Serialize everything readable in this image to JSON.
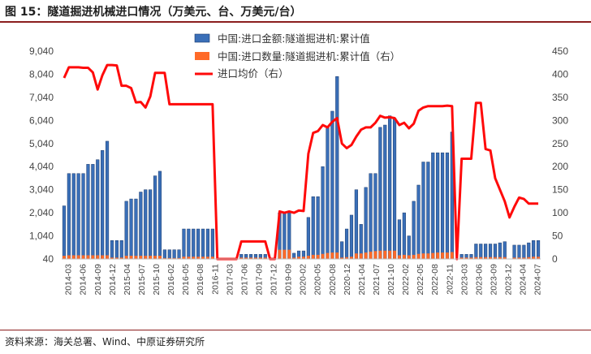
{
  "figure": {
    "title": "图 15：隧道掘进机械进口情况（万美元、台、万美元/台）",
    "source": "资料来源：海关总署、Wind、中原证券研究所"
  },
  "colors": {
    "bar_blue": "#3a6fb8",
    "bar_blue_edge": "#1b3a6b",
    "bar_orange": "#ff6a28",
    "line_red": "#ff0a0a",
    "rule": "#8b1e1e"
  },
  "chart_data": {
    "type": "bar",
    "title": "",
    "legend_position": "top-center",
    "grid": false,
    "y_left": {
      "ylim": [
        40,
        9040
      ],
      "ticks": [
        40,
        1040,
        2040,
        3040,
        4040,
        5040,
        6040,
        7040,
        8040,
        9040
      ]
    },
    "y_right": {
      "ylim": [
        0,
        450
      ],
      "ticks": [
        0,
        50,
        100,
        150,
        200,
        250,
        300,
        350,
        400,
        450
      ]
    },
    "x_tick_labels": [
      "2014-03",
      "2014-06",
      "2014-09",
      "2014-12",
      "2015-04",
      "2015-07",
      "2015-10",
      "2016-02",
      "2016-05",
      "2016-08",
      "2016-11",
      "2017-03",
      "2017-06",
      "2017-09",
      "2017-12",
      "2019-09",
      "2020-02",
      "2020-05",
      "2020-08",
      "2020-12",
      "2021-04",
      "2021-07",
      "2021-10",
      "2022-02",
      "2022-05",
      "2022-08",
      "2022-11",
      "2023-03",
      "2023-06",
      "2023-09",
      "2023-12",
      "2024-04",
      "2024-07"
    ],
    "series": [
      {
        "name": "中国:进口金额:隧道掘进机:累计值",
        "type": "bar",
        "axis": "left",
        "values": [
          2300,
          3700,
          3700,
          3700,
          3700,
          4100,
          4100,
          4300,
          4700,
          5100,
          800,
          800,
          800,
          2500,
          2600,
          2600,
          2900,
          3000,
          3000,
          3600,
          3800,
          400,
          400,
          400,
          400,
          1300,
          1300,
          1300,
          1300,
          1300,
          1300,
          1300,
          0,
          0,
          0,
          0,
          0,
          200,
          200,
          200,
          200,
          200,
          200,
          0,
          0,
          2000,
          2000,
          2000,
          250,
          350,
          350,
          1800,
          2700,
          2700,
          4000,
          5700,
          6400,
          7900,
          750,
          1300,
          1900,
          3000,
          1500,
          3100,
          3700,
          3700,
          5700,
          5800,
          6200,
          6100,
          1700,
          2000,
          1000,
          2500,
          3200,
          4200,
          4200,
          4600,
          4600,
          4600,
          4600,
          5500,
          0,
          200,
          200,
          200,
          650,
          650,
          650,
          650,
          650,
          700,
          750,
          0,
          600,
          600,
          600,
          700,
          800,
          800
        ]
      },
      {
        "name": "中国:进口数量:隧道掘进机:累计值（右）",
        "type": "bar",
        "axis": "right",
        "values": [
          7,
          8,
          8,
          8,
          8,
          8,
          8,
          8,
          8,
          8,
          3,
          3,
          3,
          7,
          7,
          7,
          7,
          7,
          7,
          7,
          7,
          2,
          2,
          2,
          2,
          5,
          5,
          5,
          5,
          5,
          5,
          5,
          0,
          0,
          0,
          0,
          0,
          3,
          3,
          3,
          3,
          3,
          3,
          0,
          0,
          20,
          20,
          20,
          3,
          5,
          5,
          7,
          9,
          9,
          11,
          13,
          14,
          14,
          3,
          4,
          5,
          12,
          12,
          14,
          16,
          17,
          18,
          18,
          18,
          18,
          8,
          9,
          8,
          9,
          11,
          12,
          12,
          13,
          14,
          14,
          14,
          15,
          0,
          3,
          3,
          3,
          4,
          4,
          4,
          4,
          4,
          4,
          4,
          0,
          3,
          3,
          3,
          4,
          5,
          5
        ]
      },
      {
        "name": "进口均价（右）",
        "type": "line",
        "axis": "right",
        "values": [
          392,
          415,
          415,
          415,
          414,
          414,
          404,
          367,
          398,
          420,
          420,
          419,
          375,
          375,
          370,
          339,
          340,
          328,
          352,
          403,
          403,
          403,
          335,
          335,
          335,
          335,
          335,
          335,
          335,
          335,
          335,
          335,
          0,
          0,
          0,
          0,
          0,
          38,
          38,
          38,
          38,
          38,
          38,
          0,
          0,
          103,
          100,
          103,
          100,
          105,
          104,
          228,
          273,
          277,
          290,
          285,
          297,
          305,
          250,
          240,
          247,
          265,
          280,
          285,
          285,
          295,
          310,
          306,
          307,
          305,
          290,
          295,
          283,
          293,
          321,
          328,
          331,
          331,
          331,
          331,
          332,
          331,
          0,
          217,
          217,
          217,
          338,
          338,
          238,
          235,
          175,
          150,
          125,
          90,
          113,
          133,
          130,
          120,
          120,
          120
        ]
      }
    ],
    "n_points": 100
  },
  "legend": [
    {
      "label": "中国:进口金额:隧道掘进机:累计值",
      "kind": "bar",
      "color": "#3a6fb8"
    },
    {
      "label": "中国:进口数量:隧道掘进机:累计值（右）",
      "kind": "bar",
      "color": "#ff6a28"
    },
    {
      "label": "进口均价（右）",
      "kind": "line",
      "color": "#ff0a0a"
    }
  ]
}
